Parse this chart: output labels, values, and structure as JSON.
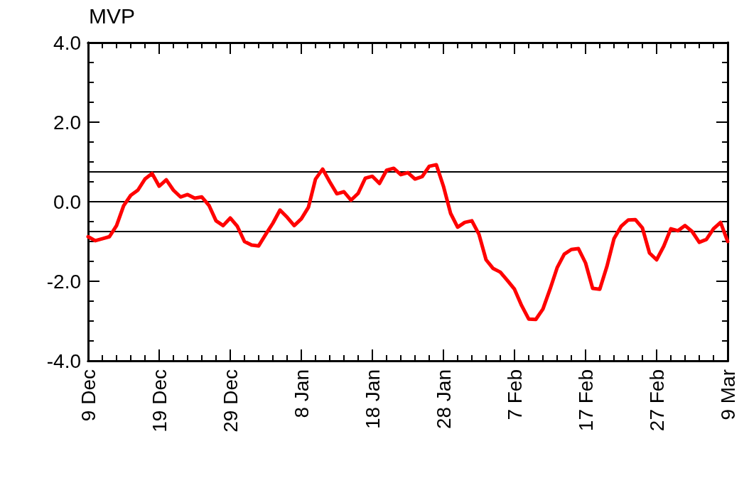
{
  "chart_data": {
    "type": "line",
    "title": "MVP",
    "color": "#ff0000",
    "line_style": "solid",
    "grid": false,
    "categories": [
      "9 Dec",
      null,
      null,
      null,
      null,
      null,
      null,
      null,
      null,
      null,
      "19 Dec",
      null,
      null,
      null,
      null,
      null,
      null,
      null,
      null,
      null,
      "29 Dec",
      null,
      null,
      null,
      null,
      null,
      null,
      null,
      null,
      null,
      "8 Jan",
      null,
      null,
      null,
      null,
      null,
      null,
      null,
      null,
      null,
      "18 Jan",
      null,
      null,
      null,
      null,
      null,
      null,
      null,
      null,
      null,
      "28 Jan",
      null,
      null,
      null,
      null,
      null,
      null,
      null,
      null,
      null,
      "7 Feb",
      null,
      null,
      null,
      null,
      null,
      null,
      null,
      null,
      null,
      "17 Feb",
      null,
      null,
      null,
      null,
      null,
      null,
      null,
      null,
      null,
      "27 Feb",
      null,
      null,
      null,
      null,
      null,
      null,
      null,
      null,
      null,
      "9 Mar"
    ],
    "values": [
      -0.88,
      -0.98,
      -0.93,
      -0.88,
      -0.6,
      -0.1,
      0.16,
      0.29,
      0.57,
      0.71,
      0.39,
      0.55,
      0.29,
      0.12,
      0.18,
      0.09,
      0.12,
      -0.09,
      -0.48,
      -0.6,
      -0.41,
      -0.62,
      -1.0,
      -1.09,
      -1.11,
      -0.82,
      -0.54,
      -0.21,
      -0.39,
      -0.6,
      -0.43,
      -0.14,
      0.57,
      0.82,
      0.5,
      0.2,
      0.25,
      0.04,
      0.21,
      0.59,
      0.64,
      0.46,
      0.79,
      0.84,
      0.68,
      0.73,
      0.57,
      0.63,
      0.89,
      0.93,
      0.39,
      -0.29,
      -0.64,
      -0.52,
      -0.48,
      -0.82,
      -1.46,
      -1.68,
      -1.77,
      -1.98,
      -2.2,
      -2.61,
      -2.95,
      -2.96,
      -2.7,
      -2.2,
      -1.66,
      -1.32,
      -1.2,
      -1.18,
      -1.54,
      -2.18,
      -2.2,
      -1.63,
      -0.93,
      -0.62,
      -0.46,
      -0.45,
      -0.66,
      -1.29,
      -1.46,
      -1.12,
      -0.68,
      -0.73,
      -0.6,
      -0.75,
      -1.02,
      -0.95,
      -0.68,
      -0.52,
      -1.0
    ],
    "ylim": [
      -4,
      4
    ],
    "yticks": [
      {
        "value": -4,
        "label": "-4.0"
      },
      {
        "value": -2,
        "label": "-2.0"
      },
      {
        "value": 0,
        "label": "0.0"
      },
      {
        "value": 2,
        "label": "2.0"
      },
      {
        "value": 4,
        "label": "4.0"
      }
    ],
    "ref_lines": [
      {
        "axis": "y",
        "value": 0.75,
        "color": "#000000"
      },
      {
        "axis": "y",
        "value": 0,
        "color": "#000000"
      },
      {
        "axis": "y",
        "value": -0.75,
        "color": "#000000"
      }
    ]
  }
}
